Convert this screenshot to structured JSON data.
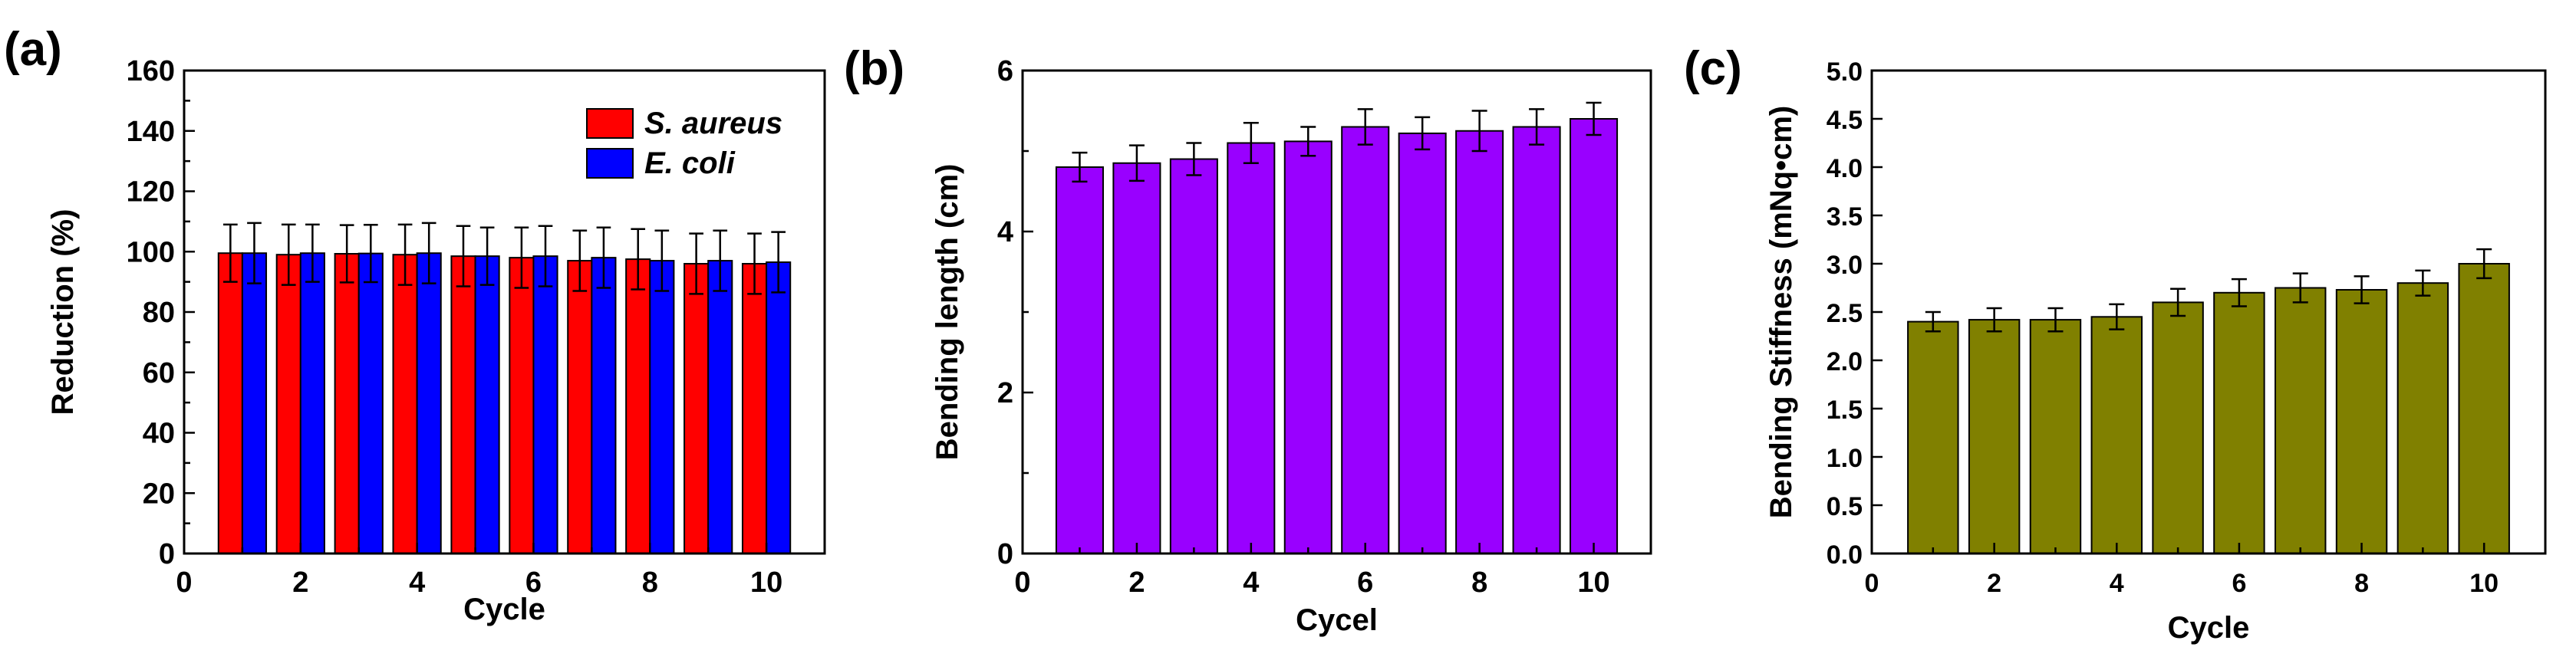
{
  "chart_data": [
    {
      "panel": "(a)",
      "type": "bar",
      "xlabel": "Cycle",
      "ylabel": "Reduction (%)",
      "xlim": [
        0,
        11
      ],
      "ylim": [
        0,
        160
      ],
      "xticks": [
        0,
        2,
        4,
        6,
        8,
        10
      ],
      "yticks": [
        0,
        20,
        40,
        60,
        80,
        100,
        120,
        140,
        160
      ],
      "legend_position": "top-right",
      "categories": [
        1,
        2,
        3,
        4,
        5,
        6,
        7,
        8,
        9,
        10
      ],
      "series": [
        {
          "name": "S. aureus",
          "color": "#ff0000",
          "values": [
            99.5,
            99,
            99.3,
            99,
            98.5,
            98,
            97,
            97.5,
            96,
            96
          ],
          "errors": [
            9.5,
            10,
            9.5,
            10,
            10,
            10,
            10,
            10,
            10,
            10
          ]
        },
        {
          "name": "E. coli",
          "color": "#0000ff",
          "values": [
            99.5,
            99.5,
            99.4,
            99.5,
            98.5,
            98.5,
            98,
            97,
            97,
            96.5
          ],
          "errors": [
            10,
            9.5,
            9.5,
            10,
            9.5,
            10,
            10,
            10,
            10,
            10
          ]
        }
      ]
    },
    {
      "panel": "(b)",
      "type": "bar",
      "xlabel": "Cycel",
      "ylabel": "Bending length (cm)",
      "xlim": [
        0,
        11
      ],
      "ylim": [
        0,
        6
      ],
      "xticks": [
        0,
        2,
        4,
        6,
        8,
        10
      ],
      "yticks": [
        0,
        2,
        4,
        6
      ],
      "categories": [
        1,
        2,
        3,
        4,
        5,
        6,
        7,
        8,
        9,
        10
      ],
      "series": [
        {
          "name": "",
          "color": "#9900ff",
          "values": [
            4.8,
            4.85,
            4.9,
            5.1,
            5.12,
            5.3,
            5.22,
            5.25,
            5.3,
            5.4
          ],
          "errors": [
            0.18,
            0.22,
            0.2,
            0.25,
            0.18,
            0.22,
            0.2,
            0.25,
            0.22,
            0.2
          ]
        }
      ]
    },
    {
      "panel": "(c)",
      "type": "bar",
      "xlabel": "Cycle",
      "ylabel": "Bending Stiffness (mNq•cm)",
      "xlim": [
        0,
        11
      ],
      "ylim": [
        0,
        5
      ],
      "xticks": [
        0,
        2,
        4,
        6,
        8,
        10
      ],
      "yticks": [
        "0.0",
        "0.5",
        "1.0",
        "1.5",
        "2.0",
        "2.5",
        "3.0",
        "3.5",
        "4.0",
        "4.5",
        "5.0"
      ],
      "categories": [
        1,
        2,
        3,
        4,
        5,
        6,
        7,
        8,
        9,
        10
      ],
      "series": [
        {
          "name": "",
          "color": "#808000",
          "values": [
            2.4,
            2.42,
            2.42,
            2.45,
            2.6,
            2.7,
            2.75,
            2.73,
            2.8,
            3.0
          ],
          "errors": [
            0.1,
            0.12,
            0.12,
            0.13,
            0.14,
            0.14,
            0.15,
            0.14,
            0.13,
            0.15
          ]
        }
      ]
    }
  ]
}
